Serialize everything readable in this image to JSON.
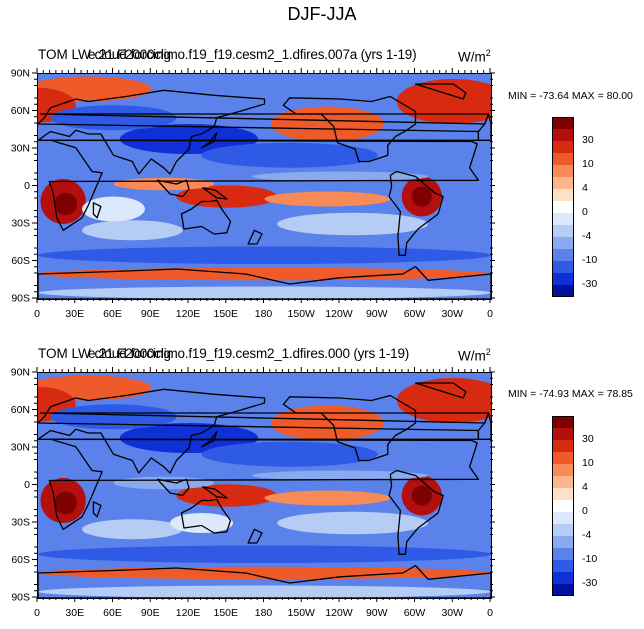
{
  "figure": {
    "title": "DJF-JJA"
  },
  "panels": [
    {
      "title": "TOM LW cloud forcing",
      "case": "e.21.F2000climo.f19_f19.cesm2_1.dfires.007a (yrs 1-19)",
      "units_base": "W/m",
      "units_exp": "2",
      "minmax": "MIN = -73.64 MAX =  80.00"
    },
    {
      "title": "TOM LW cloud forcing",
      "case": "e.21.F2000climo.f19_f19.cesm2_1.dfires.000 (yrs 1-19)",
      "units_base": "W/m",
      "units_exp": "2",
      "minmax": "MIN = -74.93 MAX =  78.85"
    }
  ],
  "axes": {
    "lat_labels": [
      "90N",
      "60N",
      "30N",
      "0",
      "30S",
      "60S",
      "90S"
    ],
    "lon_labels": [
      "0",
      "30E",
      "60E",
      "90E",
      "120E",
      "150E",
      "180",
      "150W",
      "120W",
      "90W",
      "60W",
      "30W",
      "0"
    ]
  },
  "colorbar": {
    "labels": [
      "30",
      "10",
      "4",
      "0",
      "-4",
      "-10",
      "-30"
    ],
    "colors": [
      "#7f0000",
      "#b30f0f",
      "#d72a10",
      "#ee5a2a",
      "#f88a57",
      "#fcb58c",
      "#fde0c8",
      "#ffffff",
      "#dce8fb",
      "#b5ccf5",
      "#8aaaf0",
      "#5a82ea",
      "#2f5ae6",
      "#0f30d6",
      "#00109f"
    ]
  }
}
